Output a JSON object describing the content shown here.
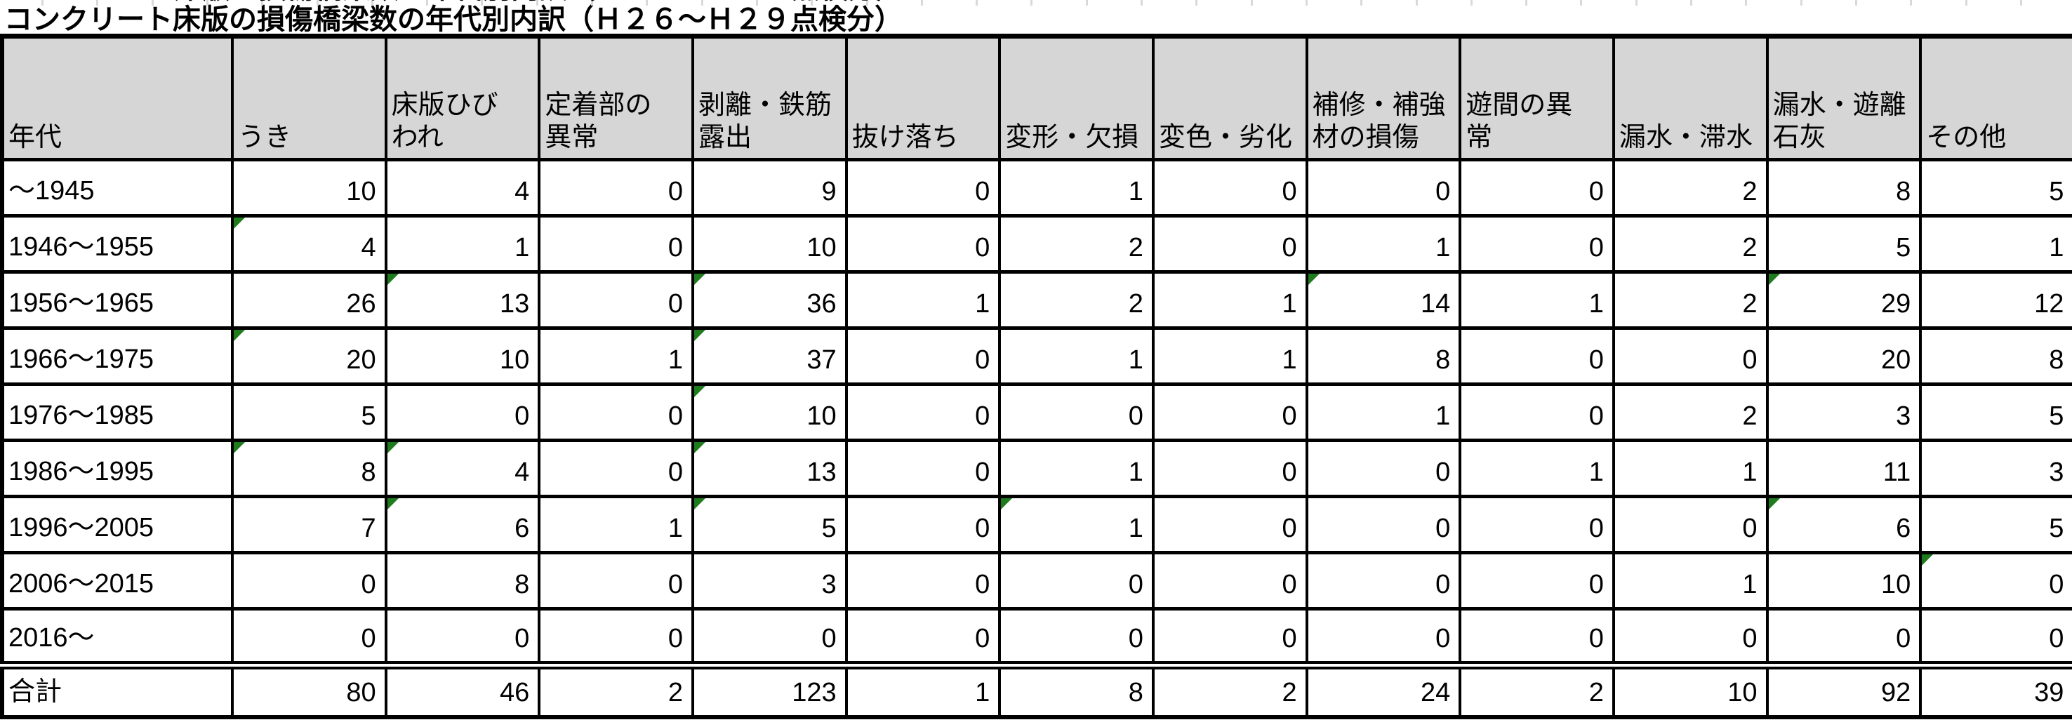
{
  "chart_data": {
    "type": "table",
    "title": "コンクリート床版の損傷橋梁数の年代別内訳（Ｈ２６～Ｈ２９点検分）",
    "columns": [
      {
        "label": "年代",
        "lines": [
          "年代"
        ]
      },
      {
        "label": "うき",
        "lines": [
          "うき"
        ]
      },
      {
        "label": "床版ひびわれ",
        "lines": [
          "床版ひび",
          "われ"
        ]
      },
      {
        "label": "定着部の異常",
        "lines": [
          "定着部の",
          "異常"
        ]
      },
      {
        "label": "剥離・鉄筋露出",
        "lines": [
          "剥離・鉄筋",
          "露出"
        ]
      },
      {
        "label": "抜け落ち",
        "lines": [
          "抜け落ち"
        ]
      },
      {
        "label": "変形・欠損",
        "lines": [
          "変形・欠損"
        ]
      },
      {
        "label": "変色・劣化",
        "lines": [
          "変色・劣化"
        ]
      },
      {
        "label": "補修・補強材の損傷",
        "lines": [
          "補修・補強",
          "材の損傷"
        ]
      },
      {
        "label": "遊間の異常",
        "lines": [
          "遊間の異",
          "常"
        ]
      },
      {
        "label": "漏水・滞水",
        "lines": [
          "漏水・滞水"
        ]
      },
      {
        "label": "漏水・遊離石灰",
        "lines": [
          "漏水・遊離",
          "石灰"
        ]
      },
      {
        "label": "その他",
        "lines": [
          "その他"
        ]
      }
    ],
    "rows": [
      {
        "label": "～1945",
        "values": [
          10,
          4,
          0,
          9,
          0,
          1,
          0,
          0,
          0,
          2,
          8,
          5
        ],
        "error_marker_cols": []
      },
      {
        "label": "1946～1955",
        "values": [
          4,
          1,
          0,
          10,
          0,
          2,
          0,
          1,
          0,
          2,
          5,
          1
        ],
        "error_marker_cols": [
          0
        ]
      },
      {
        "label": "1956～1965",
        "values": [
          26,
          13,
          0,
          36,
          1,
          2,
          1,
          14,
          1,
          2,
          29,
          12
        ],
        "error_marker_cols": [
          1,
          3,
          7,
          10
        ]
      },
      {
        "label": "1966～1975",
        "values": [
          20,
          10,
          1,
          37,
          0,
          1,
          1,
          8,
          0,
          0,
          20,
          8
        ],
        "error_marker_cols": [
          0,
          3
        ]
      },
      {
        "label": "1976～1985",
        "values": [
          5,
          0,
          0,
          10,
          0,
          0,
          0,
          1,
          0,
          2,
          3,
          5
        ],
        "error_marker_cols": [
          3
        ]
      },
      {
        "label": "1986～1995",
        "values": [
          8,
          4,
          0,
          13,
          0,
          1,
          0,
          0,
          1,
          1,
          11,
          3
        ],
        "error_marker_cols": [
          0,
          1,
          3
        ]
      },
      {
        "label": "1996～2005",
        "values": [
          7,
          6,
          1,
          5,
          0,
          1,
          0,
          0,
          0,
          0,
          6,
          5
        ],
        "error_marker_cols": [
          1,
          3,
          5,
          10
        ]
      },
      {
        "label": "2006～2015",
        "values": [
          0,
          8,
          0,
          3,
          0,
          0,
          0,
          0,
          0,
          1,
          10,
          0
        ],
        "error_marker_cols": [
          11
        ]
      },
      {
        "label": "2016～",
        "values": [
          0,
          0,
          0,
          0,
          0,
          0,
          0,
          0,
          0,
          0,
          0,
          0
        ],
        "error_marker_cols": []
      }
    ],
    "total_row": {
      "label": "合計",
      "values": [
        80,
        46,
        2,
        123,
        1,
        8,
        2,
        24,
        2,
        10,
        92,
        39
      ],
      "error_marker_cols": []
    },
    "colors": {
      "header_bg": "#d6d6d6",
      "grid": "#000000",
      "error_indicator": "#1e7b1e",
      "stub_gridline": "#d9d9d9"
    }
  }
}
